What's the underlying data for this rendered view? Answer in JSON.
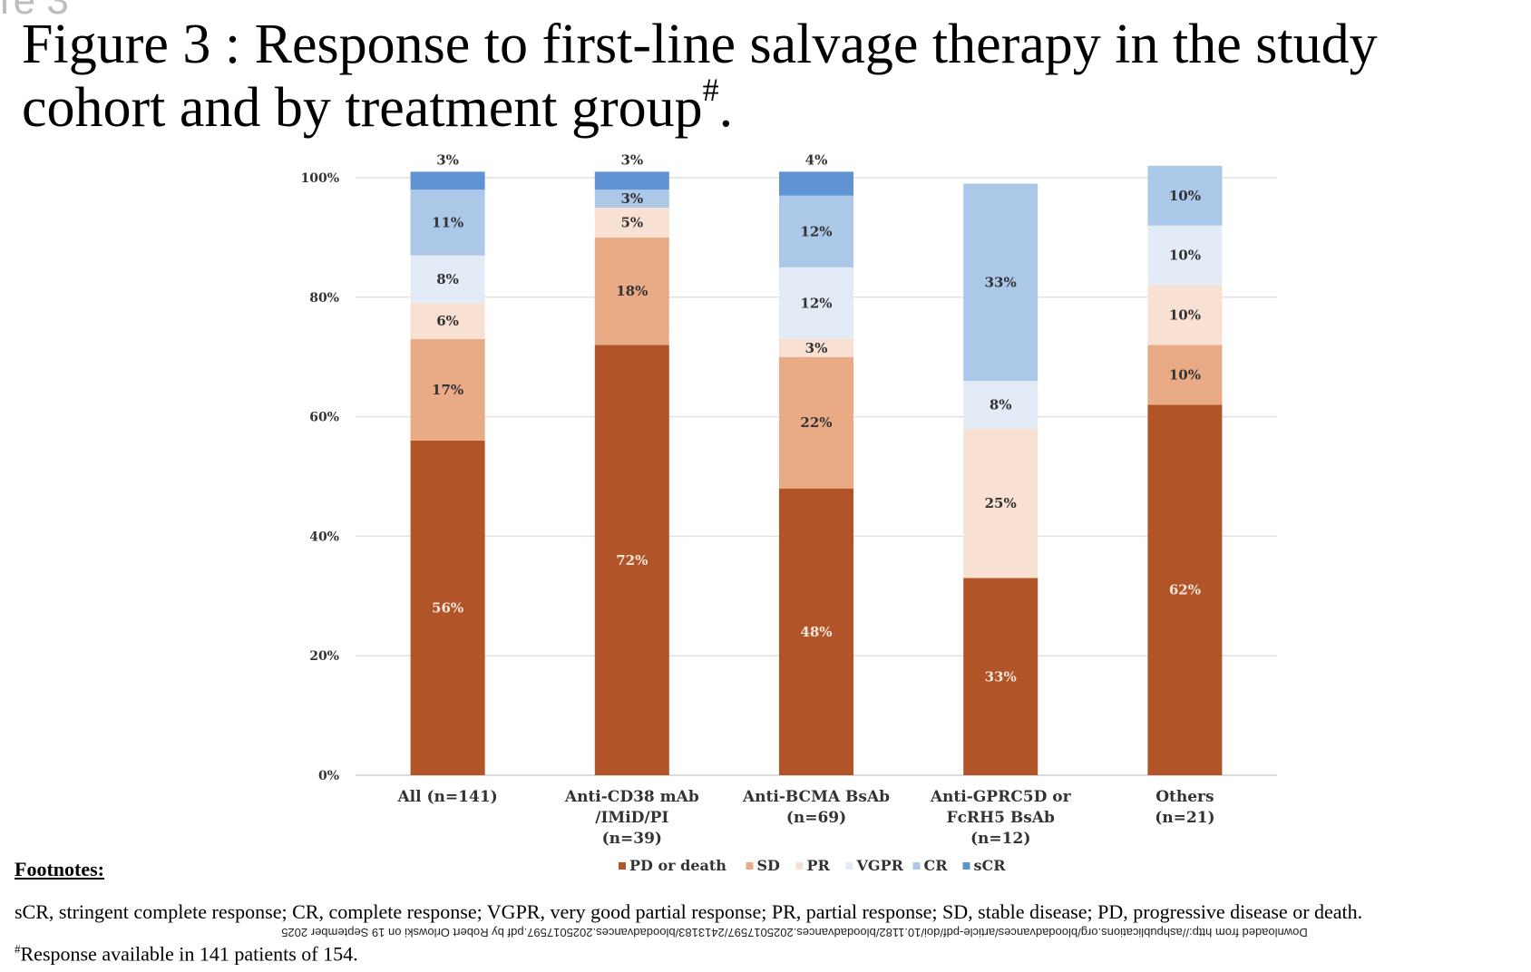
{
  "corner_fragment": "re 3",
  "title": {
    "main": "Figure 3 : Response to first-line salvage therapy in the study cohort and by treatment group",
    "sup": "#",
    "end": "."
  },
  "chart_data": {
    "type": "bar",
    "stacked": true,
    "y_tick_labels": [
      "0%",
      "20%",
      "40%",
      "60%",
      "80%",
      "100%"
    ],
    "ylim": [
      0,
      100
    ],
    "grid": true,
    "legend_position": "bottom",
    "categories": [
      [
        "All (n=141)"
      ],
      [
        "Anti-CD38 mAb",
        "/IMiD/PI",
        "(n=39)"
      ],
      [
        "Anti-BCMA BsAb",
        "(n=69)"
      ],
      [
        "Anti-GPRC5D or",
        "FcRH5 BsAb",
        "(n=12)"
      ],
      [
        "Others",
        "(n=21)"
      ]
    ],
    "series": [
      {
        "name": "PD or death",
        "color": "#b15528",
        "values": [
          56,
          72,
          48,
          33,
          62
        ],
        "labels": [
          "56%",
          "72%",
          "48%",
          "33%",
          "62%"
        ]
      },
      {
        "name": "SD",
        "color": "#e9ab86",
        "values": [
          17,
          18,
          22,
          0,
          10
        ],
        "labels": [
          "17%",
          "18%",
          "22%",
          "",
          "10%"
        ]
      },
      {
        "name": "PR",
        "color": "#f8e1d3",
        "values": [
          6,
          5,
          3,
          25,
          10
        ],
        "labels": [
          "6%",
          "5%",
          "3%",
          "25%",
          "10%"
        ]
      },
      {
        "name": "VGPR",
        "color": "#e2ebf6",
        "values": [
          8,
          0,
          12,
          8,
          10
        ],
        "labels": [
          "8%",
          "",
          "12%",
          "8%",
          "10%"
        ]
      },
      {
        "name": "CR",
        "color": "#abc8e8",
        "values": [
          11,
          3,
          12,
          33,
          10
        ],
        "labels": [
          "11%",
          "3%",
          "12%",
          "33%",
          "10%"
        ]
      },
      {
        "name": "sCR",
        "color": "#5f93d3",
        "values": [
          3,
          3,
          4,
          0,
          0
        ],
        "labels": [
          "3%",
          "3%",
          "4%",
          "",
          ""
        ]
      }
    ]
  },
  "footnotes": {
    "heading": "Footnotes:",
    "abbreviations": "sCR, stringent complete response; CR, complete response; VGPR, very good partial response; PR, partial response; SD, stable disease; PD, progressive disease or death.",
    "download_line": "Downloaded from http://ashpublications.org/bloodadvances/article-pdf/doi/10.1182/bloodadvances.2025017597/2413183/bloodadvances.2025017597.pdf by Robert Orlowski on 19 September 2025",
    "response_sup": "#",
    "response_text": "Response available in 141 patients of 154."
  }
}
